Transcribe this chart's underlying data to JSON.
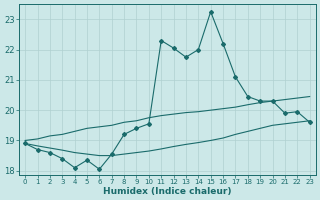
{
  "xlabel": "Humidex (Indice chaleur)",
  "bg_color": "#cce8e8",
  "line_color": "#1a6b6b",
  "grid_color": "#b0d0d0",
  "x_values": [
    0,
    1,
    2,
    3,
    4,
    5,
    6,
    7,
    8,
    9,
    10,
    11,
    12,
    13,
    14,
    15,
    16,
    17,
    18,
    19,
    20,
    21,
    22,
    23
  ],
  "main_line": [
    18.9,
    18.7,
    18.6,
    18.4,
    18.1,
    18.35,
    18.05,
    18.55,
    19.2,
    19.4,
    19.55,
    22.3,
    22.05,
    21.75,
    22.0,
    23.25,
    22.2,
    21.1,
    20.45,
    20.3,
    20.3,
    19.9,
    19.95,
    19.6
  ],
  "upper_line": [
    19.0,
    19.05,
    19.15,
    19.2,
    19.3,
    19.4,
    19.45,
    19.5,
    19.6,
    19.65,
    19.75,
    19.82,
    19.87,
    19.92,
    19.95,
    20.0,
    20.05,
    20.1,
    20.18,
    20.25,
    20.3,
    20.35,
    20.4,
    20.45
  ],
  "lower_line": [
    18.9,
    18.82,
    18.75,
    18.68,
    18.6,
    18.55,
    18.5,
    18.5,
    18.55,
    18.6,
    18.65,
    18.72,
    18.8,
    18.87,
    18.93,
    19.0,
    19.08,
    19.2,
    19.3,
    19.4,
    19.5,
    19.55,
    19.6,
    19.65
  ],
  "ylim": [
    17.85,
    23.5
  ],
  "xlim": [
    -0.5,
    23.5
  ],
  "yticks": [
    18,
    19,
    20,
    21,
    22,
    23
  ],
  "xticks": [
    0,
    1,
    2,
    3,
    4,
    5,
    6,
    7,
    8,
    9,
    10,
    11,
    12,
    13,
    14,
    15,
    16,
    17,
    18,
    19,
    20,
    21,
    22,
    23
  ]
}
